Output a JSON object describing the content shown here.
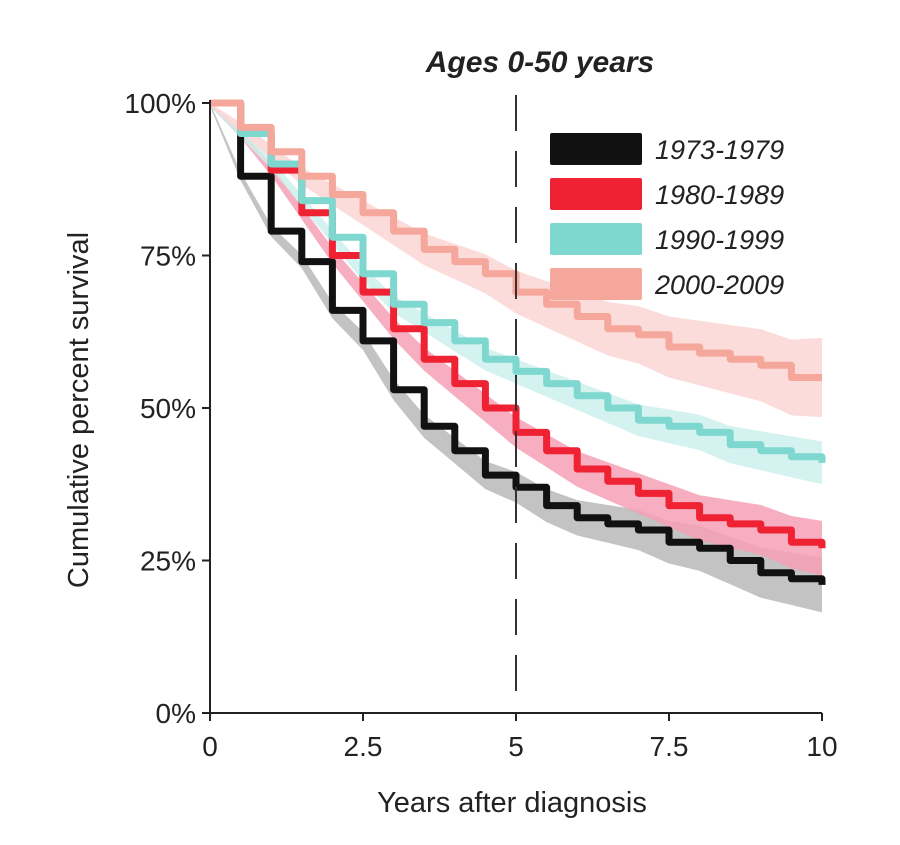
{
  "chart_data": {
    "type": "line",
    "title": "Ages 0-50 years",
    "xlabel": "Years after diagnosis",
    "ylabel": "Cumulative percent survival",
    "xlim": [
      0,
      10
    ],
    "ylim": [
      0,
      100
    ],
    "xticks": [
      0,
      2.5,
      5,
      7.5,
      10
    ],
    "xtick_labels": [
      "0",
      "2.5",
      "5",
      "7.5",
      "10"
    ],
    "yticks": [
      0,
      25,
      50,
      75,
      100
    ],
    "ytick_labels": [
      "0%",
      "25%",
      "50%",
      "75%",
      "100%"
    ],
    "reference_line_x": 5,
    "legend_position": "top-right",
    "x": [
      0,
      0.5,
      1,
      1.5,
      2,
      2.5,
      3,
      3.5,
      4,
      4.5,
      5,
      5.5,
      6,
      6.5,
      7,
      7.5,
      8,
      8.5,
      9,
      9.5,
      10
    ],
    "series": [
      {
        "name": "1973-1979",
        "color": "#111111",
        "band": "#b8b8b8",
        "ci_end": 4,
        "values": [
          100,
          88,
          79,
          74,
          66,
          61,
          53,
          47,
          43,
          39,
          37,
          34,
          32,
          31,
          30,
          28,
          27,
          25,
          23,
          22,
          21
        ]
      },
      {
        "name": "1980-1989",
        "color": "#ee2233",
        "band": "#f5a0b5",
        "ci_end": 4,
        "values": [
          100,
          95,
          89,
          82,
          75,
          69,
          63,
          58,
          54,
          50,
          46,
          43,
          40,
          38,
          36,
          34,
          32,
          31,
          30,
          28,
          27
        ]
      },
      {
        "name": "1990-1999",
        "color": "#7fd8d0",
        "band": "#cdf0ec",
        "ci_end": 3,
        "values": [
          100,
          95,
          90,
          84,
          78,
          72,
          67,
          64,
          61,
          58,
          56,
          54,
          52,
          50,
          48,
          47,
          46,
          44,
          43,
          42,
          41
        ]
      },
      {
        "name": "2000-2009",
        "color": "#f4a79a",
        "band": "#fbd5d5",
        "ci_end": 6,
        "values": [
          100,
          96,
          92,
          88,
          85,
          82,
          79,
          76,
          74,
          72,
          69,
          67,
          65,
          63,
          62,
          60,
          59,
          58,
          57,
          55,
          55
        ]
      }
    ]
  }
}
